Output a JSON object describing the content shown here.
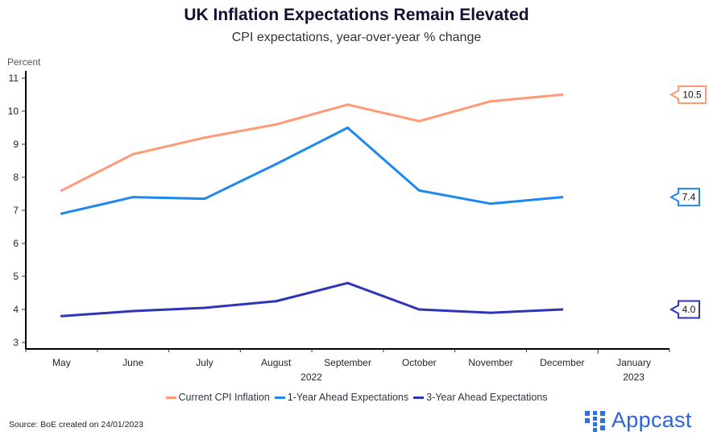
{
  "header": {
    "title": "UK Inflation Expectations Remain Elevated",
    "subtitle": "CPI expectations, year-over-year % change"
  },
  "footer": {
    "source": "Source: BoE created on 24/01/2023",
    "logo_text": "Appcast"
  },
  "chart_data": {
    "type": "line",
    "title": "UK Inflation Expectations Remain Elevated",
    "subtitle": "CPI expectations, year-over-year % change",
    "ylabel": "Percent",
    "xlabel": "",
    "categories": [
      "May",
      "June",
      "July",
      "August",
      "September",
      "October",
      "November",
      "December",
      "January"
    ],
    "year_labels": [
      {
        "label": "2022",
        "under": "September"
      },
      {
        "label": "2023",
        "under": "January"
      }
    ],
    "ylim": [
      3,
      11
    ],
    "yticks": [
      3,
      4,
      5,
      6,
      7,
      8,
      9,
      10,
      11
    ],
    "grid": false,
    "legend_position": "bottom",
    "series": [
      {
        "name": "Current CPI Inflation",
        "color": "#FF9A77",
        "values": [
          7.6,
          8.7,
          9.2,
          9.6,
          10.2,
          9.7,
          10.3,
          10.5,
          null
        ],
        "end_label": "10.5"
      },
      {
        "name": "1-Year Ahead Expectations",
        "color": "#1E88F0",
        "values": [
          6.9,
          7.4,
          7.35,
          8.4,
          9.5,
          7.6,
          7.2,
          7.4,
          null
        ],
        "end_label": "7.4"
      },
      {
        "name": "3-Year Ahead Expectations",
        "color": "#2E35B8",
        "values": [
          3.8,
          3.95,
          4.05,
          4.25,
          4.8,
          4.0,
          3.9,
          4.0,
          null
        ],
        "end_label": "4.0"
      }
    ]
  }
}
